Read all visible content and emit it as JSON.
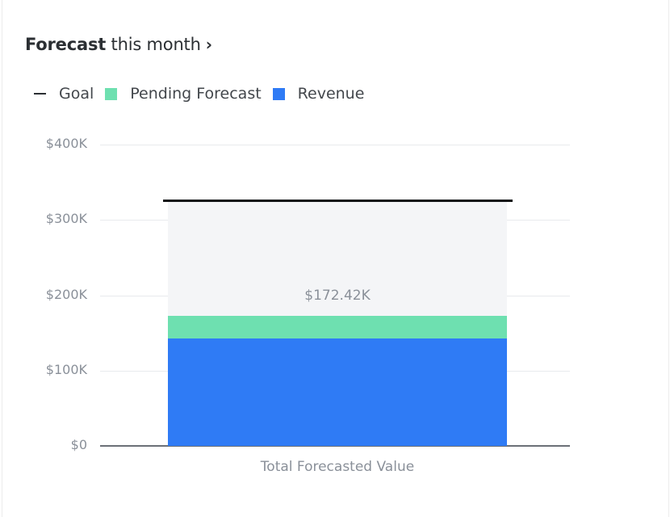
{
  "header": {
    "title_bold": "Forecast",
    "title_rest": " this month",
    "chevron_icon": "chevron-right-icon",
    "chevron_glyph": "›"
  },
  "legend": [
    {
      "label": "Goal",
      "type": "line",
      "color": "#2b2f33"
    },
    {
      "label": "Pending Forecast",
      "type": "swatch",
      "color": "#6ee0b0"
    },
    {
      "label": "Revenue",
      "type": "swatch",
      "color": "#2f7bf5"
    }
  ],
  "colors": {
    "revenue": "#2f7bf5",
    "pending": "#6ee0b0",
    "goal_remaining": "#f4f5f7",
    "goal_line": "#111315",
    "gridline": "#e8eaed",
    "axis": "#6b7077",
    "tick_text": "#8a9099"
  },
  "chart_data": {
    "type": "bar",
    "stacked": true,
    "title": "Forecast this month",
    "xlabel": "",
    "ylabel": "",
    "categories": [
      "Total Forecasted Value"
    ],
    "series": [
      {
        "name": "Revenue",
        "values": [
          143000
        ]
      },
      {
        "name": "Pending Forecast",
        "values": [
          29420
        ]
      }
    ],
    "goal": {
      "name": "Goal",
      "value": 325000
    },
    "total_label": "$172.42K",
    "total_value": 172420,
    "ylim": [
      0,
      400000
    ],
    "yticks": [
      0,
      100000,
      200000,
      300000,
      400000
    ],
    "ytick_labels": [
      "$0",
      "$100K",
      "$200K",
      "$300K",
      "$400K"
    ],
    "grid": true,
    "legend_position": "top-left"
  }
}
